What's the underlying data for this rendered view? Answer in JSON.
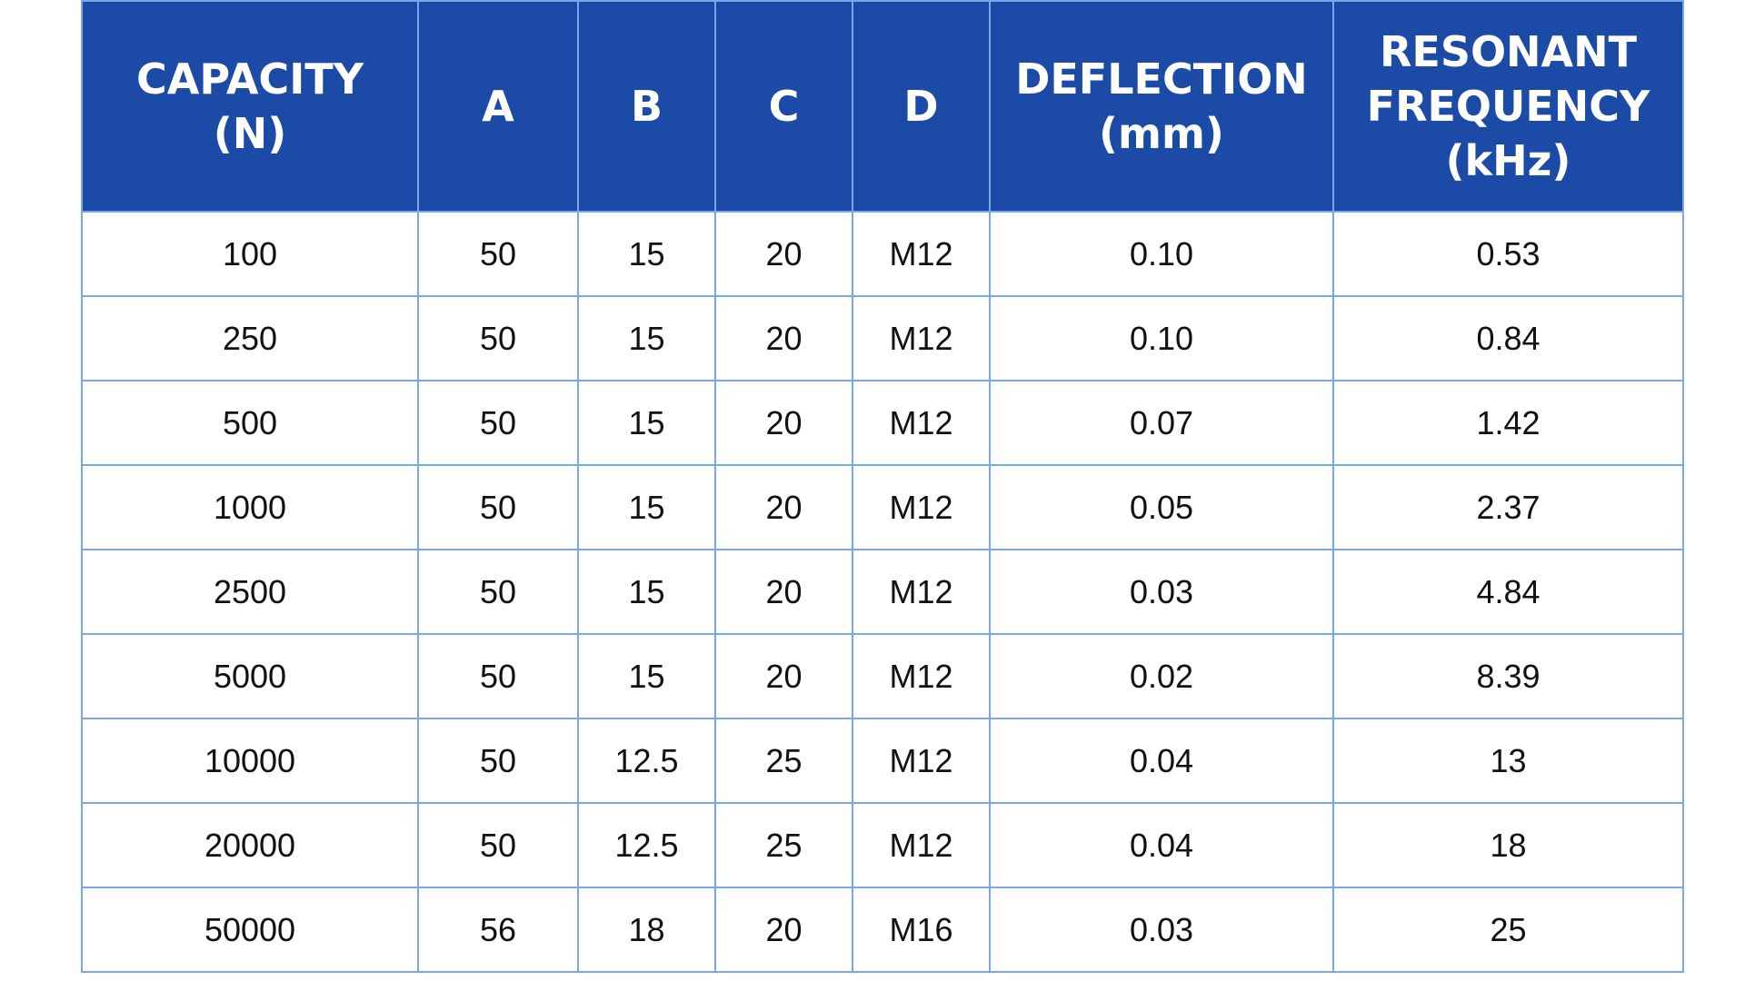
{
  "headers": [
    {
      "lines": [
        "CAPACITY",
        "(N)"
      ]
    },
    {
      "lines": [
        "A"
      ]
    },
    {
      "lines": [
        "B"
      ]
    },
    {
      "lines": [
        "C"
      ]
    },
    {
      "lines": [
        "D"
      ]
    },
    {
      "lines": [
        "DEFLECTION",
        "(mm)"
      ]
    },
    {
      "lines": [
        "RESONANT",
        "FREQUENCY",
        "(kHz)"
      ]
    }
  ],
  "rows": [
    [
      "100",
      "50",
      "15",
      "20",
      "M12",
      "0.10",
      "0.53"
    ],
    [
      "250",
      "50",
      "15",
      "20",
      "M12",
      "0.10",
      "0.84"
    ],
    [
      "500",
      "50",
      "15",
      "20",
      "M12",
      "0.07",
      "1.42"
    ],
    [
      "1000",
      "50",
      "15",
      "20",
      "M12",
      "0.05",
      "2.37"
    ],
    [
      "2500",
      "50",
      "15",
      "20",
      "M12",
      "0.03",
      "4.84"
    ],
    [
      "5000",
      "50",
      "15",
      "20",
      "M12",
      "0.02",
      "8.39"
    ],
    [
      "10000",
      "50",
      "12.5",
      "25",
      "M12",
      "0.04",
      "13"
    ],
    [
      "20000",
      "50",
      "12.5",
      "25",
      "M12",
      "0.04",
      "18"
    ],
    [
      "50000",
      "56",
      "18",
      "20",
      "M16",
      "0.03",
      "25"
    ]
  ],
  "colors": {
    "header_bg": "#1c4ba7",
    "header_text": "#ffffff",
    "border": "#7aa6ec",
    "cell_bg": "#ffffff",
    "cell_text": "#111111"
  }
}
